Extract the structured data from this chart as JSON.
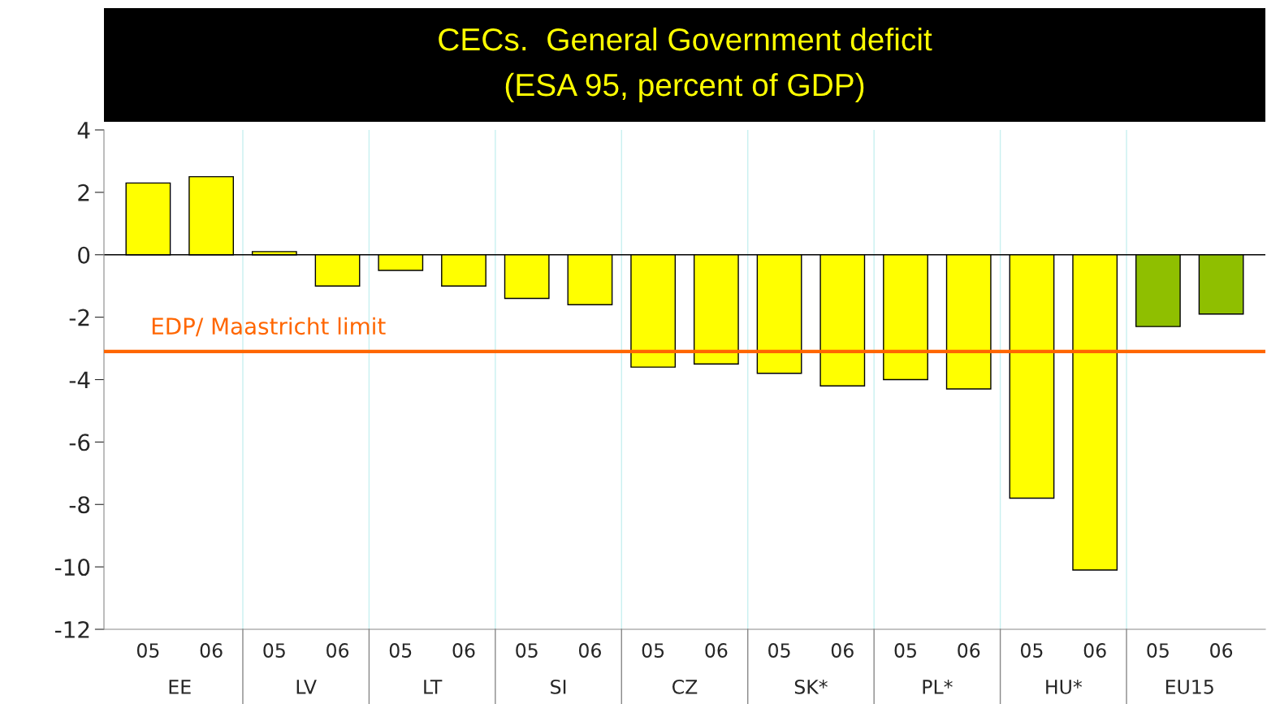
{
  "chart_data": {
    "type": "bar",
    "title": "CECs.  General Government deficit\n(ESA 95, percent of GDP)",
    "categories": [
      "05",
      "06",
      "05",
      "06",
      "05",
      "06",
      "05",
      "06",
      "05",
      "06",
      "05",
      "06",
      "05",
      "06",
      "05",
      "06",
      "05",
      "06"
    ],
    "values": [
      2.3,
      2.5,
      0.1,
      -1.0,
      -0.5,
      -1.0,
      -1.4,
      -1.6,
      -3.6,
      -3.5,
      -3.8,
      -4.2,
      -4.0,
      -4.3,
      -7.8,
      -10.1,
      -2.3,
      -1.9
    ],
    "colors": [
      "#ffff00",
      "#ffff00",
      "#ffff00",
      "#ffff00",
      "#ffff00",
      "#ffff00",
      "#ffff00",
      "#ffff00",
      "#ffff00",
      "#ffff00",
      "#ffff00",
      "#ffff00",
      "#ffff00",
      "#ffff00",
      "#ffff00",
      "#ffff00",
      "#8fbf00",
      "#8fbf00"
    ],
    "annotations": [
      "EE",
      "LV",
      "LT",
      "SI",
      "CZ",
      "SK*",
      "PL*",
      "HU*",
      "EU15"
    ],
    "ylim": [
      -12,
      4
    ],
    "yticks": [
      -12,
      -10,
      -8,
      -6,
      -4,
      -2,
      0,
      2,
      4
    ],
    "ref_lines": [
      {
        "axis": "y",
        "value": -3.1,
        "label": "EDP/ Maastricht limit",
        "color": "#ff6600"
      }
    ],
    "grid": "x"
  }
}
